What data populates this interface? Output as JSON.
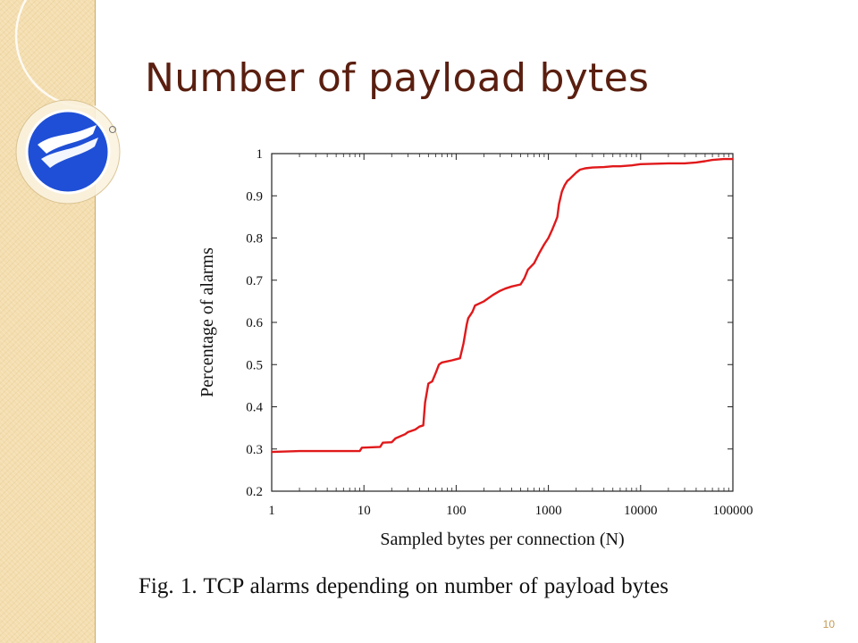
{
  "slide": {
    "title": "Number of payload bytes",
    "caption": "Fig. 1.    TCP alarms depending on number of payload bytes",
    "page_number": "10"
  },
  "colors": {
    "accent_red": "#e0191b",
    "logo_blue": "#1f4fd6",
    "title": "#5a1f10"
  },
  "chart_data": {
    "type": "line",
    "title": "",
    "xlabel": "Sampled bytes per connection (N)",
    "ylabel": "Percentage of alarms",
    "x_scale": "log",
    "xlim": [
      1,
      100000
    ],
    "ylim": [
      0.2,
      1.0
    ],
    "x_ticks": [
      1,
      10,
      100,
      1000,
      10000,
      100000
    ],
    "x_tick_labels": [
      "1",
      "10",
      "100",
      "1000",
      "10000",
      "100000"
    ],
    "y_ticks": [
      0.2,
      0.3,
      0.4,
      0.5,
      0.6,
      0.7,
      0.8,
      0.9,
      1.0
    ],
    "y_tick_labels": [
      "0.2",
      "0.3",
      "0.4",
      "0.5",
      "0.6",
      "0.7",
      "0.8",
      "0.9",
      "1"
    ],
    "grid": false,
    "series": [
      {
        "color": "#e0191b",
        "x": [
          1,
          2,
          9,
          9.5,
          15,
          16,
          20,
          22,
          28,
          30,
          36,
          40,
          44,
          46,
          50,
          55,
          60,
          65,
          70,
          90,
          110,
          120,
          130,
          135,
          150,
          160,
          180,
          200,
          250,
          300,
          340,
          400,
          500,
          550,
          600,
          700,
          800,
          900,
          1000,
          1100,
          1200,
          1250,
          1300,
          1400,
          1500,
          1600,
          1700,
          2000,
          2200,
          2500,
          3000,
          4000,
          5000,
          6000,
          8000,
          10000,
          20000,
          30000,
          40000,
          50000,
          60000,
          80000,
          100000
        ],
        "y": [
          0.293,
          0.295,
          0.295,
          0.303,
          0.305,
          0.315,
          0.316,
          0.325,
          0.335,
          0.34,
          0.346,
          0.353,
          0.356,
          0.41,
          0.455,
          0.46,
          0.48,
          0.5,
          0.505,
          0.51,
          0.515,
          0.55,
          0.595,
          0.61,
          0.625,
          0.64,
          0.645,
          0.65,
          0.665,
          0.675,
          0.68,
          0.685,
          0.69,
          0.705,
          0.725,
          0.74,
          0.765,
          0.785,
          0.8,
          0.82,
          0.84,
          0.85,
          0.88,
          0.91,
          0.925,
          0.935,
          0.94,
          0.955,
          0.962,
          0.965,
          0.967,
          0.968,
          0.97,
          0.97,
          0.972,
          0.975,
          0.977,
          0.977,
          0.979,
          0.982,
          0.985,
          0.987,
          0.987
        ]
      }
    ]
  }
}
